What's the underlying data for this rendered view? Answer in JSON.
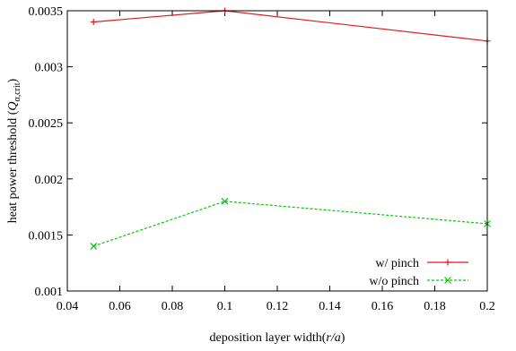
{
  "chart_data": {
    "type": "line",
    "title": "",
    "xlabel": "deposition layer width(r/a)",
    "ylabel": "heat power threshold (Q_α,crit)",
    "xlabel_parts": {
      "text": "deposition layer width(",
      "var": "r/a",
      "close": ")"
    },
    "ylabel_parts": {
      "text": "heat power threshold (",
      "var": "Q",
      "sub": "α,crit",
      "close": ")"
    },
    "xlim": [
      0.04,
      0.2
    ],
    "ylim": [
      0.001,
      0.0035
    ],
    "x_ticks": [
      "0.04",
      "0.06",
      "0.08",
      "0.1",
      "0.12",
      "0.14",
      "0.16",
      "0.18",
      "0.2"
    ],
    "y_ticks": [
      "0.001",
      "0.0015",
      "0.002",
      "0.0025",
      "0.003",
      "0.0035"
    ],
    "grid": false,
    "legend_position": "bottom-right",
    "series": [
      {
        "name": "w/ pinch",
        "color": "#e41a1c",
        "dash": "solid",
        "marker": "plus",
        "x": [
          0.05,
          0.1,
          0.2
        ],
        "y": [
          0.0034,
          0.0035,
          0.00323
        ]
      },
      {
        "name": "w/o pinch",
        "color": "#00cc00",
        "dash": "dashed",
        "marker": "cross",
        "x": [
          0.05,
          0.1,
          0.2
        ],
        "y": [
          0.0014,
          0.0018,
          0.0016
        ]
      }
    ]
  }
}
